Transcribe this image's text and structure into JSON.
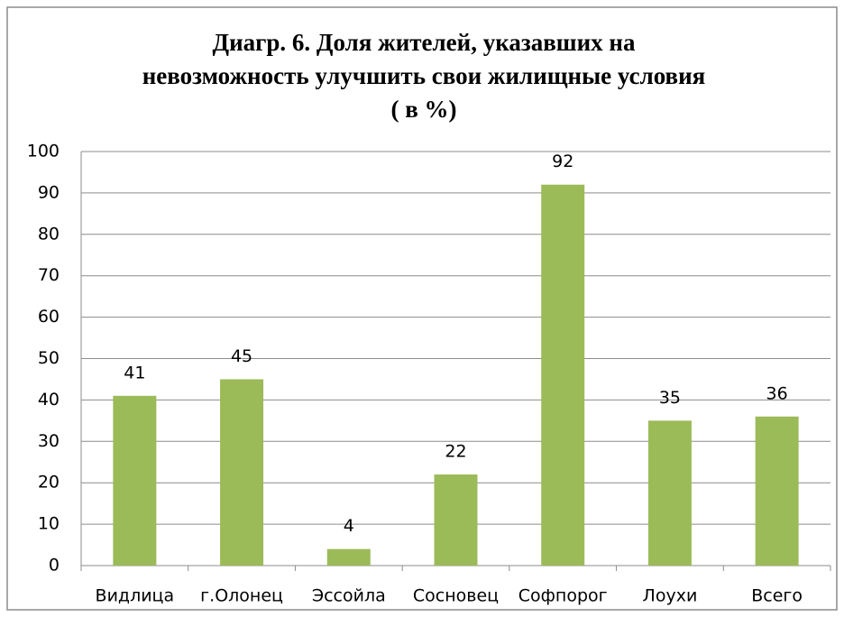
{
  "chart_data": {
    "type": "bar",
    "title": [
      "Диагр. 6. Доля жителей, указавших на",
      "невозможность улучшить свои жилищные условия",
      "( в %)"
    ],
    "categories": [
      "Видлица",
      "г.Олонец",
      "Эссойла",
      "Сосновец",
      "Софпорог",
      "Лоухи",
      "Всего"
    ],
    "values": [
      41,
      45,
      4,
      22,
      92,
      35,
      36
    ],
    "color": "#9bbb59",
    "ylim": [
      0,
      100
    ],
    "yticks": [
      0,
      10,
      20,
      30,
      40,
      50,
      60,
      70,
      80,
      90,
      100
    ],
    "grid": true
  }
}
